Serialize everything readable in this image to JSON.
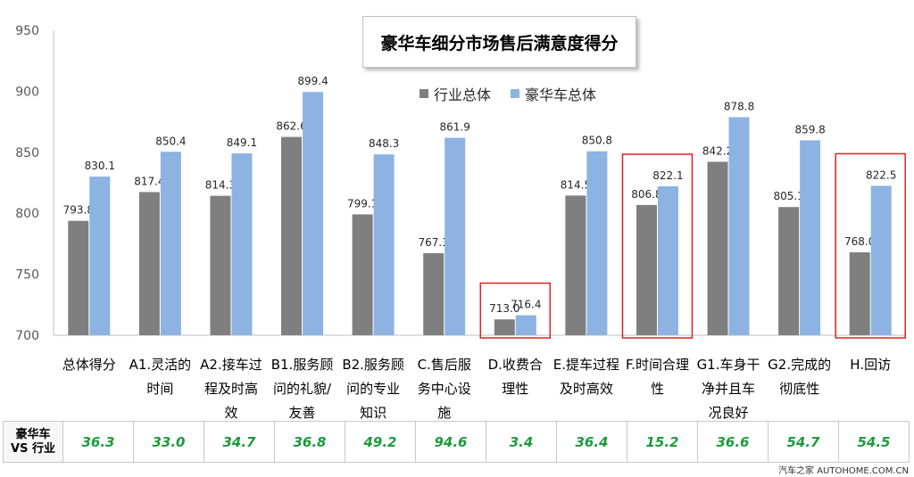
{
  "chart_data": {
    "type": "bar",
    "title": "豪华车细分市场售后满意度得分",
    "ylim": [
      700,
      950
    ],
    "yticks": [
      700,
      750,
      800,
      850,
      900,
      950
    ],
    "legend": [
      "行业总体",
      "豪华车总体"
    ],
    "legend_position": "top-center",
    "grid": false,
    "categories": [
      [
        "总体得分"
      ],
      [
        "A1.灵活的",
        "时间"
      ],
      [
        "A2.接车过",
        "程及时高",
        "效"
      ],
      [
        "B1.服务顾",
        "问的礼貌/",
        "友善"
      ],
      [
        "B2.服务顾",
        "问的专业",
        "知识"
      ],
      [
        "C.售后服",
        "务中心设",
        "施"
      ],
      [
        "D.收费合",
        "理性"
      ],
      [
        "E.提车过程",
        "及时高效"
      ],
      [
        "F.时间合理",
        "性"
      ],
      [
        "G1.车身干",
        "净并且车",
        "况良好"
      ],
      [
        "G2.完成的",
        "彻底性"
      ],
      [
        "H.回访"
      ]
    ],
    "series": [
      {
        "name": "行业总体",
        "color": "#7f7f7f",
        "values": [
          793.8,
          817.4,
          814.3,
          862.6,
          799.1,
          767.3,
          713.0,
          814.5,
          806.8,
          842.2,
          805.1,
          768.0
        ],
        "labels": [
          "793.8",
          "817.4",
          "814.3",
          "862.6",
          "799.1",
          "767.3",
          "713.0",
          "814.5",
          "806.8",
          "842.2",
          "805.1",
          "768.0"
        ]
      },
      {
        "name": "豪华车总体",
        "color": "#8db3e2",
        "values": [
          830.1,
          850.4,
          849.1,
          899.4,
          848.3,
          861.9,
          716.4,
          850.8,
          822.1,
          878.8,
          859.8,
          822.5
        ],
        "labels": [
          "830.1",
          "850.4",
          "849.1",
          "899.4",
          "848.3",
          "861.9",
          "716.4",
          "850.8",
          "822.1",
          "878.8",
          "859.8",
          "822.5"
        ]
      }
    ],
    "highlighted_categories": [
      6,
      8,
      11
    ],
    "highlight_color": "#e02020"
  },
  "comparison_row": {
    "header": [
      "豪华车",
      "VS 行业"
    ],
    "values": [
      "36.3",
      "33.0",
      "34.7",
      "36.8",
      "49.2",
      "94.6",
      "3.4",
      "36.4",
      "15.2",
      "36.6",
      "54.7",
      "54.5"
    ],
    "color": "#1e9a3c"
  },
  "watermark": "汽车之家 AUTOHOME.COM.CN"
}
